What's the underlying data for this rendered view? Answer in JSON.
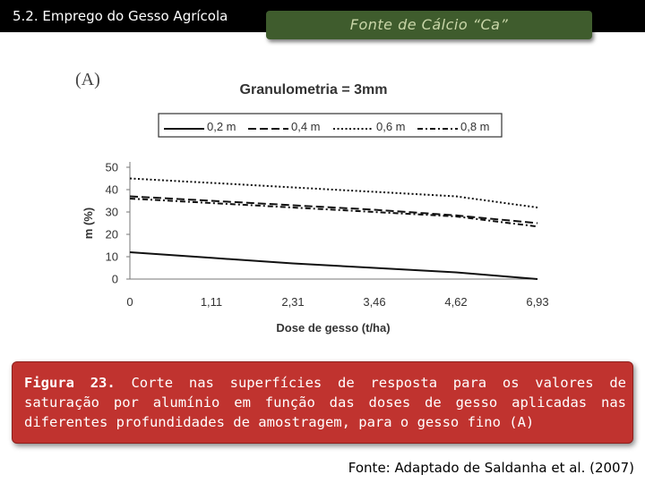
{
  "header": {
    "section_title": "5.2. Emprego do Gesso Agrícola",
    "topic": "Fonte de Cálcio “Ca”"
  },
  "chart_data": {
    "type": "line",
    "panel_label": "(A)",
    "title": "Granulometria = 3mm",
    "xlabel": "Dose de gesso (t/ha)",
    "ylabel": "m (%)",
    "categories": [
      "0",
      "1,11",
      "2,31",
      "3,46",
      "4,62",
      "6,93"
    ],
    "ylim": [
      0,
      50
    ],
    "yticks": [
      "0",
      "10",
      "20",
      "30",
      "40",
      "50"
    ],
    "legend_position": "top",
    "series": [
      {
        "name": "0,2 m",
        "style": "solid",
        "values": [
          12,
          9.5,
          7,
          5,
          3,
          0
        ]
      },
      {
        "name": "0,4 m",
        "style": "long-dash",
        "values": [
          37,
          35,
          33,
          31,
          28.5,
          25
        ]
      },
      {
        "name": "0,6 m",
        "style": "dotted",
        "values": [
          45,
          43,
          41,
          39,
          37,
          32
        ]
      },
      {
        "name": "0,8 m",
        "style": "dash-dot",
        "values": [
          36,
          34,
          32,
          30,
          28,
          23.5
        ]
      }
    ]
  },
  "caption": {
    "label": "Figura 23.",
    "text": " Corte nas superfícies de resposta para os valores de saturação por alumínio em função das doses de gesso aplicadas nas diferentes profundidades de amostragem, para o gesso fino (A)"
  },
  "source": "Fonte: Adaptado de Saldanha et al. (2007)",
  "colors": {
    "topbar": "#000000",
    "topic_badge": "#3f5c2d",
    "caption_box": "#c0332f"
  }
}
